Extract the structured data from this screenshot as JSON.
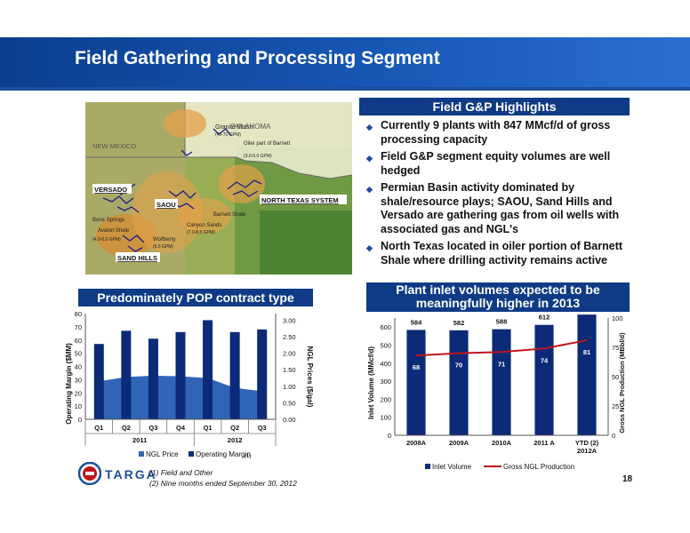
{
  "title": "Field Gathering and Processing Segment",
  "page_number": "18",
  "highlights": {
    "heading": "Field G&P Highlights",
    "bullets": [
      "Currently 9 plants with 847 MMcf/d of gross processing capacity",
      "Field G&P segment equity volumes are well hedged",
      "Permian Basin activity dominated by shale/resource plays; SAOU, Sand Hills and Versado are gathering gas from oil wells with associated gas and NGL's",
      "North Texas located in oiler portion of Barnett Shale where drilling activity remains active"
    ]
  },
  "map": {
    "labels": {
      "oklahoma": "OKLAHOMA",
      "new_mexico": "NEW MEXICO",
      "versado": "VERSADO",
      "saou": "SAOU",
      "sand_hills": "SAND HILLS",
      "north_texas": "NORTH TEXAS SYSTEM",
      "granite_wash": "Granite Wash",
      "granite_wash_rate": "(45-70 GPM)",
      "oiler_barnett": "Oiler part of Barnett",
      "oiler_barnett_rate": "(3.0-5.0 GPM)",
      "bone_springs": "Bone Springs",
      "avalon": "Avalon Shale",
      "bone_avalon_rate": "(4.0-8.0 GPM)",
      "canyon_sands": "Canyon Sands",
      "canyon_rate": "(7.0-8.5 GPM)",
      "wolfberry": "Wolfberry",
      "wolfberry_rate": "(6.5 GPM)",
      "barnett_shale": "Barnett Shale"
    }
  },
  "left_chart": {
    "heading": "Predominately POP contract type",
    "footnote_marker": "(1)"
  },
  "right_chart": {
    "heading": "Plant inlet volumes expected to be meaningfully higher in 2013",
    "footnote_marker": "(2)"
  },
  "footnotes": [
    "(1)    Field and Other",
    "(2)    Nine months ended September 30, 2012"
  ],
  "logo_text": "TARGA",
  "colors": {
    "header_blue": "#0f3b86",
    "bar_navy": "#0b2a78",
    "area_blue": "#2f64b8",
    "line_red": "#c0141c"
  },
  "chart_data": [
    {
      "type": "bar",
      "categories": [
        "Q1",
        "Q2",
        "Q3",
        "Q4",
        "Q1",
        "Q2",
        "Q3"
      ],
      "groups": [
        {
          "label": "2011",
          "span": [
            0,
            3
          ]
        },
        {
          "label": "2012",
          "span": [
            4,
            6
          ]
        }
      ],
      "series": [
        {
          "name": "NGL Price",
          "type": "area",
          "axis": "right",
          "values": [
            1.15,
            1.28,
            1.32,
            1.3,
            1.25,
            0.95,
            0.85
          ]
        },
        {
          "name": "Operating Margin",
          "type": "bar",
          "axis": "left",
          "values": [
            57,
            67,
            61,
            66,
            75,
            66,
            68
          ]
        }
      ],
      "ylabel": "Operating Margin ($MM)",
      "ylabel_right": "NGL Prices ($/gal)",
      "ylim": [
        0,
        80
      ],
      "yticks": [
        0,
        10,
        20,
        30,
        40,
        50,
        60,
        70,
        80
      ],
      "ylim_right": [
        0,
        3.2
      ],
      "yticks_right": [
        "0.00",
        "0.50",
        "1.00",
        "1.50",
        "2.00",
        "2.50",
        "3.00"
      ],
      "legend_position": "bottom"
    },
    {
      "type": "bar",
      "categories": [
        "2008A",
        "2009A",
        "2010A",
        "2011 A",
        "YTD (2) 2012A"
      ],
      "series": [
        {
          "name": "Inlet Volume",
          "type": "bar",
          "axis": "left",
          "values": [
            584,
            582,
            588,
            612,
            669
          ]
        },
        {
          "name": "Gross NGL Production",
          "type": "line",
          "axis": "right",
          "values": [
            68,
            70,
            71,
            74,
            81
          ]
        }
      ],
      "ylabel": "Inlet Volume (MMcf/d)",
      "ylabel_right": "Gross NGL Production (MBbl/d)",
      "ylim": [
        0,
        650
      ],
      "yticks": [
        0,
        100,
        200,
        300,
        400,
        500,
        600
      ],
      "ylim_right": [
        0,
        100
      ],
      "yticks_right": [
        0,
        25,
        50,
        75,
        100
      ],
      "legend_position": "bottom"
    }
  ]
}
